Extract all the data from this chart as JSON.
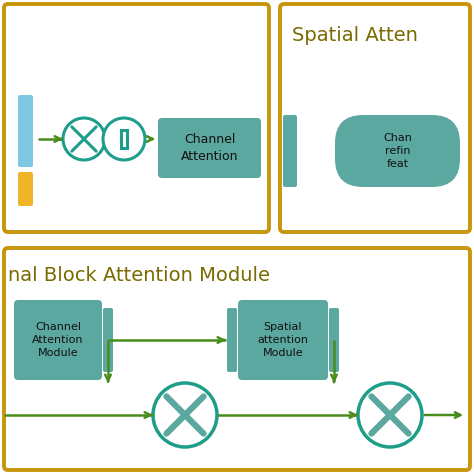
{
  "bg_color": "#ffffff",
  "gold_border": "#C8960C",
  "teal_box": "#5BA8A0",
  "teal_circle_edge": "#1E9E8A",
  "teal_x_fill": "#5BA8A0",
  "blue_rect": "#7EC8E3",
  "yellow_rect": "#F0B429",
  "arrow_color": "#4A8C1C",
  "title_color": "#7A6A00",
  "text_dark": "#111111",
  "top_left_title": "Channel\nAttention",
  "top_right_title": "Spatial Atten",
  "top_right_sub": "Chan\nrefin\nfeat",
  "bottom_title": "nal Block Attention Module",
  "bottom_box1": "Channel\nAttention\nModule",
  "bottom_box2": "Spatial\nattention\nModule"
}
